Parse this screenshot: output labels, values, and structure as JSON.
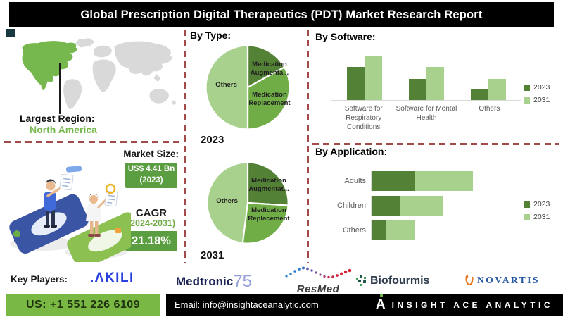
{
  "title": "Global Prescription Digital Therapeutics (PDT) Market Research Report",
  "map": {
    "region_heading": "Largest Region:",
    "region_value": "North America"
  },
  "market": {
    "heading": "Market Size:",
    "size_value": "US$ 4.41 Bn",
    "size_year": "(2023)",
    "cagr_heading": "CAGR",
    "cagr_period": "(2024-2031)",
    "cagr_value": "21.18%"
  },
  "by_type": {
    "heading": "By Type:",
    "pies": [
      {
        "year": "2023",
        "labels": [
          "Medication Augmenta...",
          "Medication Replacement",
          "Others"
        ]
      },
      {
        "year": "2031",
        "labels": [
          "Medication Augmentat...",
          "Medication Replacement",
          "Others"
        ]
      }
    ]
  },
  "by_software": {
    "heading": "By Software:"
  },
  "by_application": {
    "heading": "By Application:"
  },
  "legend": {
    "s2023": "2023",
    "s2031": "2031"
  },
  "key_players": {
    "heading": "Key Players:",
    "akili_logo_text": ".ΛKILI",
    "medtronic": "Medtronic",
    "medtronic_75": "75",
    "resmed": "ResMed",
    "biofourmis": "Biofourmis",
    "novartis": "NOVARTIS"
  },
  "footer": {
    "phone": "US: +1 551 226 6109",
    "email": "Email: info@insightaceanalytic.com",
    "brand_mark": "A",
    "brand": "INSIGHT ACE ANALYTIC"
  },
  "colors": {
    "series_2023": "#538135",
    "series_2031": "#a9d18e",
    "pie_augmentation": "#538135",
    "pie_replacement": "#70ad47",
    "pie_others": "#a9d18e",
    "map_highlight": "#76b84e",
    "map_land": "#d9d9d9",
    "badge_green": "#5b9e41",
    "contact_green": "#79b843",
    "divider_red": "#a34a4a",
    "title_bg": "#000000"
  },
  "chart_data": [
    {
      "type": "pie",
      "title": "By Type - 2023",
      "labels": [
        "Medication Augmentation",
        "Medication Replacement",
        "Others"
      ],
      "values": [
        17,
        33,
        50
      ],
      "units": "% share (estimated from slice angles, no data labels shown)"
    },
    {
      "type": "pie",
      "title": "By Type - 2031",
      "labels": [
        "Medication Augmentation",
        "Medication Replacement",
        "Others"
      ],
      "values": [
        26,
        26,
        48
      ],
      "units": "% share (estimated from slice angles, no data labels shown)"
    },
    {
      "type": "bar",
      "title": "By Software",
      "categories": [
        "Software for\nRespiratory\nConditions",
        "Software for Mental\nHealth",
        "Others"
      ],
      "series": [
        {
          "name": "2023",
          "values": [
            47,
            30,
            15
          ]
        },
        {
          "name": "2031",
          "values": [
            63,
            47,
            30
          ]
        }
      ],
      "units": "relative height (no value axis shown)",
      "legend_position": "right",
      "grid": false
    },
    {
      "type": "bar-horizontal-stacked",
      "title": "By Application",
      "categories": [
        "Adults",
        "Children",
        "Others"
      ],
      "series": [
        {
          "name": "2023",
          "values": [
            60,
            40,
            19
          ]
        },
        {
          "name": "2031",
          "values": [
            83,
            60,
            41
          ]
        }
      ],
      "units": "relative length (no value axis shown)",
      "legend_position": "right",
      "grid": false
    }
  ]
}
